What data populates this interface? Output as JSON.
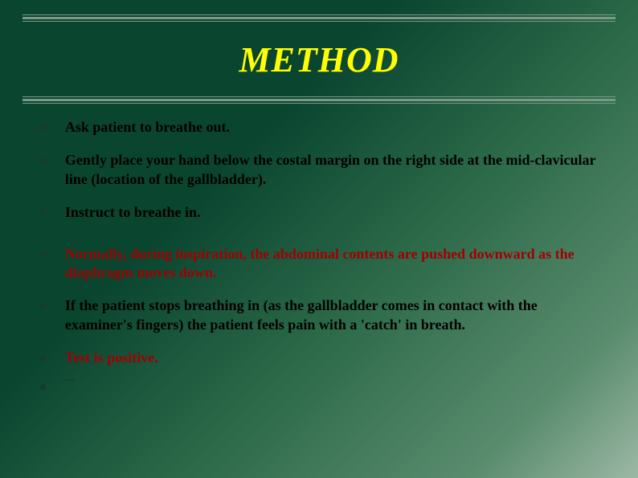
{
  "slide": {
    "title": "METHOD",
    "title_color": "#ffff00",
    "title_fontsize": 44,
    "title_italic": true,
    "background_gradient": {
      "start": "#0a4530",
      "end": "#9db8a5"
    },
    "rule_color": "#7a9a88",
    "bullet_color": "#1a3a30",
    "body_fontsize": 18,
    "bullets": [
      {
        "text": "Ask patient to breathe out.",
        "color": "black"
      },
      {
        "text": "Gently place your hand below the costal margin on the right side at the mid-clavicular line (location of the gallbladder).",
        "color": "black"
      },
      {
        "text": "Instruct to breathe in.",
        "color": "black"
      },
      {
        "text": "Normally, during inspiration, the abdominal contents are pushed downward as the diaphragm moves down.",
        "color": "red",
        "gap_before": true
      },
      {
        "text": "If the patient stops breathing in (as the gallbladder comes in contact with the examiner's fingers) the patient feels pain with a 'catch' in breath.",
        "color": "black"
      },
      {
        "text": "Test is positive.",
        "color": "red"
      },
      {
        "text": "***",
        "color": "tiny"
      }
    ]
  }
}
